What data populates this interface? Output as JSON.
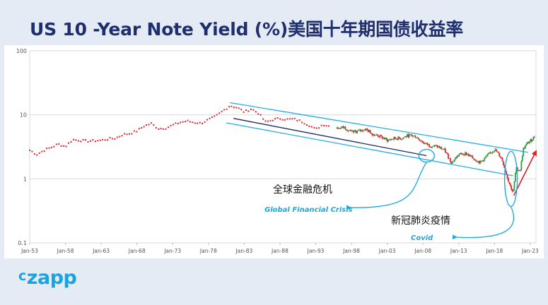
{
  "page": {
    "title": "US 10  -Year Note Yield (%)美国十年期国债收益率",
    "brand_prefix": "c",
    "brand_rest": "zapp"
  },
  "colors": {
    "background": "#e4ebf5",
    "title": "#1f2f6e",
    "brand": "#1aa3e0",
    "channel": "#22aee8",
    "dots": "#e3212a",
    "candle_up": "#2e9e44",
    "candle_down": "#d8262c",
    "trend_dark": "#1c2a63",
    "arrow_red": "#e3212a",
    "annotation_blue": "#1ba9e0"
  },
  "chart_data": {
    "type": "scatter",
    "title": "US 10  -Year Note Yield (%)",
    "y_scale": "log",
    "ylim": [
      0.1,
      100
    ],
    "y_ticks": [
      "0.1",
      "1",
      "10",
      "100"
    ],
    "y_tick_values": [
      0.1,
      1,
      10,
      100
    ],
    "x_range": [
      1953,
      2023.8
    ],
    "x_ticks": [
      "Jan-53",
      "Jan-58",
      "Jan-63",
      "Jan-68",
      "Jan-73",
      "Jan-78",
      "Jan-83",
      "Jan-88",
      "Jan-93",
      "Jan-98",
      "Jan-03",
      "Jan-08",
      "Jan-13",
      "Jan-18",
      "Jan-23"
    ],
    "x_tick_values": [
      1953,
      1958,
      1963,
      1968,
      1973,
      1978,
      1983,
      1988,
      1993,
      1998,
      2003,
      2008,
      2013,
      2018,
      2023
    ],
    "grid": true,
    "series": [
      {
        "name": "Yield (annual dots)",
        "style": "dots",
        "x": [
          1953,
          1954,
          1955,
          1956,
          1957,
          1958,
          1959,
          1960,
          1961,
          1962,
          1963,
          1964,
          1965,
          1966,
          1967,
          1968,
          1969,
          1970,
          1971,
          1972,
          1973,
          1974,
          1975,
          1976,
          1977,
          1978,
          1979,
          1980,
          1981,
          1982,
          1983,
          1984,
          1985,
          1986,
          1987,
          1988,
          1989,
          1990,
          1991,
          1992,
          1993,
          1994,
          1995
        ],
        "values": [
          2.8,
          2.4,
          2.8,
          3.1,
          3.5,
          3.2,
          4.1,
          4.0,
          3.9,
          3.95,
          4.0,
          4.2,
          4.3,
          4.9,
          5.1,
          5.6,
          6.7,
          7.3,
          6.1,
          6.2,
          6.9,
          7.6,
          8.0,
          7.6,
          7.4,
          8.4,
          9.4,
          11.5,
          13.9,
          13.0,
          11.1,
          12.4,
          10.6,
          7.7,
          8.4,
          8.8,
          8.5,
          8.6,
          7.9,
          7.0,
          5.9,
          7.1,
          6.6
        ]
      },
      {
        "name": "Yield (weekly candles)",
        "style": "candles",
        "x": [
          1996,
          1997,
          1998,
          1999,
          2000,
          2001,
          2002,
          2003,
          2004,
          2005,
          2006,
          2007,
          2008,
          2009,
          2010,
          2011,
          2012,
          2013,
          2014,
          2015,
          2016,
          2017,
          2018,
          2019,
          2020,
          2020.6,
          2021,
          2021.6,
          2022,
          2022.6,
          2023,
          2023.6
        ],
        "values": [
          6.4,
          6.4,
          5.3,
          5.6,
          6.0,
          5.0,
          4.6,
          4.0,
          4.3,
          4.3,
          4.8,
          4.6,
          3.7,
          3.3,
          3.2,
          2.8,
          1.8,
          2.4,
          2.5,
          2.1,
          1.8,
          2.3,
          2.9,
          2.1,
          0.9,
          0.6,
          1.45,
          1.35,
          2.9,
          3.6,
          3.9,
          4.6
        ]
      }
    ],
    "annotations": [
      {
        "id": "gfc",
        "label_cn": "全球金融危机",
        "label_en": "Global Financial Crisis",
        "x": 2008.5,
        "y": 2.3
      },
      {
        "id": "covid",
        "label_cn": "新冠肺炎疫情",
        "label_en": "Covid",
        "x": 2020.3,
        "y": 0.6
      }
    ],
    "channel_lines": [
      {
        "name": "upper",
        "start": {
          "x": 1981,
          "y": 15.5
        },
        "end": {
          "x": 2022.7,
          "y": 2.6
        }
      },
      {
        "name": "lower",
        "start": {
          "x": 1980.5,
          "y": 7.5
        },
        "end": {
          "x": 2020.6,
          "y": 1.12
        }
      }
    ],
    "trend_lines": [
      {
        "name": "dark",
        "start": {
          "x": 1981.5,
          "y": 8.8
        },
        "end": {
          "x": 2008.5,
          "y": 2.3
        }
      },
      {
        "name": "red-arrow",
        "start": {
          "x": 2020.7,
          "y": 0.55
        },
        "end": {
          "x": 2023.8,
          "y": 2.7
        }
      }
    ]
  }
}
